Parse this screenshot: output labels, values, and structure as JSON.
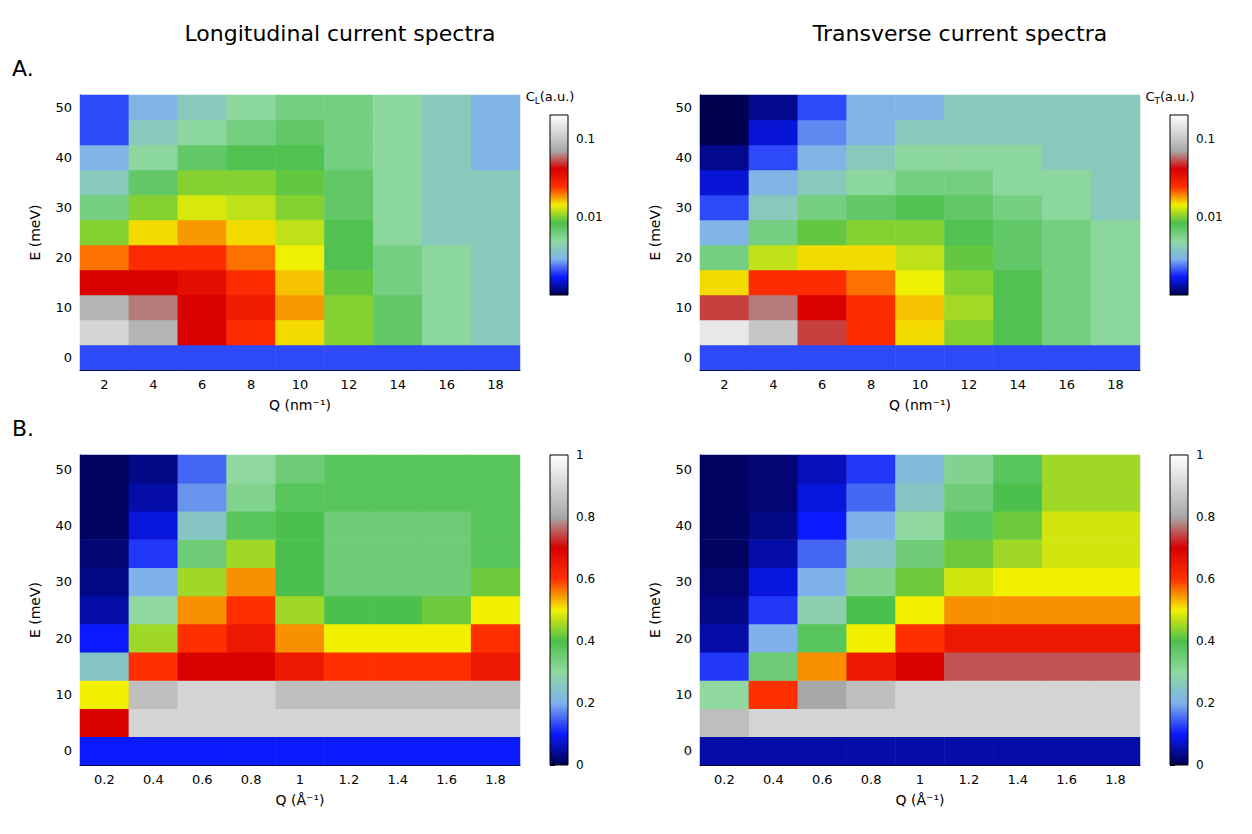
{
  "figure": {
    "column_titles": [
      "Longitudinal current spectra",
      "Transverse current spectra"
    ],
    "panel_labels": [
      "A.",
      "B."
    ]
  },
  "chart_data": [
    {
      "type": "heatmap",
      "x_label": "Q (nm⁻¹)",
      "y_label": "E (meV)",
      "x": [
        2,
        4,
        6,
        8,
        10,
        12,
        14,
        16,
        18
      ],
      "y": [
        0,
        5,
        10,
        15,
        20,
        25,
        30,
        35,
        40,
        45,
        50
      ],
      "xticks": [
        2,
        4,
        6,
        8,
        10,
        12,
        14,
        16,
        18
      ],
      "yticks": [
        0,
        10,
        20,
        30,
        40,
        50
      ],
      "cells": [
        [
          0.002,
          0.002,
          0.002,
          0.002,
          0.002,
          0.002,
          0.002,
          0.002,
          0.002
        ],
        [
          0.12,
          0.08,
          0.04,
          0.025,
          0.015,
          0.01,
          0.007,
          0.005,
          0.004
        ],
        [
          0.08,
          0.06,
          0.04,
          0.03,
          0.018,
          0.01,
          0.007,
          0.005,
          0.004
        ],
        [
          0.04,
          0.04,
          0.035,
          0.025,
          0.016,
          0.009,
          0.006,
          0.005,
          0.004
        ],
        [
          0.02,
          0.025,
          0.025,
          0.02,
          0.014,
          0.008,
          0.006,
          0.005,
          0.004
        ],
        [
          0.01,
          0.015,
          0.018,
          0.015,
          0.012,
          0.008,
          0.005,
          0.004,
          0.004
        ],
        [
          0.006,
          0.01,
          0.013,
          0.012,
          0.01,
          0.007,
          0.005,
          0.004,
          0.004
        ],
        [
          0.004,
          0.007,
          0.01,
          0.01,
          0.009,
          0.007,
          0.005,
          0.004,
          0.004
        ],
        [
          0.003,
          0.005,
          0.007,
          0.008,
          0.008,
          0.006,
          0.005,
          0.004,
          0.003
        ],
        [
          0.002,
          0.004,
          0.005,
          0.006,
          0.007,
          0.006,
          0.005,
          0.004,
          0.003
        ],
        [
          0.002,
          0.003,
          0.004,
          0.005,
          0.006,
          0.006,
          0.005,
          0.004,
          0.003
        ]
      ],
      "colorbar": {
        "range": [
          0.001,
          0.2
        ],
        "ticks": [
          0.01,
          0.1
        ],
        "log": true,
        "label": {
          "main": "C",
          "sub": "L",
          "after": "(a.u.)"
        }
      }
    },
    {
      "type": "heatmap",
      "x_label": "Q (nm⁻¹)",
      "y_label": "E (meV)",
      "x": [
        2,
        4,
        6,
        8,
        10,
        12,
        14,
        16,
        18
      ],
      "y": [
        0,
        5,
        10,
        15,
        20,
        25,
        30,
        35,
        40,
        45,
        50
      ],
      "xticks": [
        2,
        4,
        6,
        8,
        10,
        12,
        14,
        16,
        18
      ],
      "yticks": [
        0,
        10,
        20,
        30,
        40,
        50
      ],
      "cells": [
        [
          0.002,
          0.002,
          0.002,
          0.002,
          0.002,
          0.002,
          0.002,
          0.002,
          0.002
        ],
        [
          0.15,
          0.1,
          0.05,
          0.025,
          0.015,
          0.01,
          0.008,
          0.006,
          0.005
        ],
        [
          0.05,
          0.06,
          0.04,
          0.025,
          0.016,
          0.011,
          0.008,
          0.006,
          0.005
        ],
        [
          0.015,
          0.025,
          0.025,
          0.02,
          0.014,
          0.01,
          0.008,
          0.006,
          0.005
        ],
        [
          0.006,
          0.012,
          0.015,
          0.015,
          0.012,
          0.009,
          0.007,
          0.006,
          0.005
        ],
        [
          0.003,
          0.006,
          0.009,
          0.01,
          0.01,
          0.008,
          0.007,
          0.006,
          0.005
        ],
        [
          0.002,
          0.004,
          0.006,
          0.007,
          0.008,
          0.007,
          0.006,
          0.005,
          0.004
        ],
        [
          0.0015,
          0.003,
          0.004,
          0.005,
          0.006,
          0.006,
          0.005,
          0.005,
          0.004
        ],
        [
          0.0012,
          0.002,
          0.003,
          0.004,
          0.005,
          0.005,
          0.005,
          0.004,
          0.004
        ],
        [
          0.001,
          0.0015,
          0.0025,
          0.003,
          0.004,
          0.004,
          0.004,
          0.004,
          0.004
        ],
        [
          0.001,
          0.0012,
          0.002,
          0.003,
          0.003,
          0.004,
          0.004,
          0.004,
          0.004
        ]
      ],
      "colorbar": {
        "range": [
          0.001,
          0.2
        ],
        "ticks": [
          0.01,
          0.1
        ],
        "log": true,
        "label": {
          "main": "C",
          "sub": "T",
          "after": "(a.u.)"
        }
      }
    },
    {
      "type": "heatmap",
      "x_label": "Q (Å⁻¹)",
      "y_label": "E (meV)",
      "x": [
        0.2,
        0.4,
        0.6,
        0.8,
        1,
        1.2,
        1.4,
        1.6,
        1.8
      ],
      "y": [
        0,
        5,
        10,
        15,
        20,
        25,
        30,
        35,
        40,
        45,
        50
      ],
      "xticks": [
        0.2,
        0.4,
        0.6,
        0.8,
        1,
        1.2,
        1.4,
        1.6,
        1.8
      ],
      "yticks": [
        0,
        10,
        20,
        30,
        40,
        50
      ],
      "cells": [
        [
          0.1,
          0.1,
          0.1,
          0.1,
          0.1,
          0.1,
          0.1,
          0.1,
          0.1
        ],
        [
          0.7,
          0.9,
          0.9,
          0.9,
          0.9,
          0.9,
          0.9,
          0.9,
          0.9
        ],
        [
          0.5,
          0.85,
          0.9,
          0.9,
          0.85,
          0.85,
          0.85,
          0.85,
          0.85
        ],
        [
          0.25,
          0.6,
          0.7,
          0.7,
          0.65,
          0.6,
          0.6,
          0.6,
          0.65
        ],
        [
          0.1,
          0.45,
          0.6,
          0.65,
          0.55,
          0.5,
          0.5,
          0.5,
          0.6
        ],
        [
          0.05,
          0.3,
          0.55,
          0.6,
          0.45,
          0.4,
          0.4,
          0.42,
          0.5
        ],
        [
          0.03,
          0.2,
          0.45,
          0.55,
          0.4,
          0.35,
          0.35,
          0.35,
          0.42
        ],
        [
          0.02,
          0.12,
          0.35,
          0.45,
          0.4,
          0.35,
          0.35,
          0.35,
          0.38
        ],
        [
          0.01,
          0.08,
          0.25,
          0.38,
          0.4,
          0.35,
          0.35,
          0.35,
          0.38
        ],
        [
          0.01,
          0.05,
          0.18,
          0.32,
          0.38,
          0.38,
          0.38,
          0.38,
          0.38
        ],
        [
          0.01,
          0.03,
          0.15,
          0.3,
          0.35,
          0.38,
          0.38,
          0.38,
          0.38
        ]
      ],
      "colorbar": {
        "range": [
          0,
          1
        ],
        "ticks": [
          0,
          0.2,
          0.4,
          0.6,
          0.8,
          1
        ]
      }
    },
    {
      "type": "heatmap",
      "x_label": "Q (Å⁻¹)",
      "y_label": "E (meV)",
      "x": [
        0.2,
        0.4,
        0.6,
        0.8,
        1,
        1.2,
        1.4,
        1.6,
        1.8
      ],
      "y": [
        0,
        5,
        10,
        15,
        20,
        25,
        30,
        35,
        40,
        45,
        50
      ],
      "xticks": [
        0.2,
        0.4,
        0.6,
        0.8,
        1,
        1.2,
        1.4,
        1.6,
        1.8
      ],
      "yticks": [
        0,
        10,
        20,
        30,
        40,
        50
      ],
      "cells": [
        [
          0.05,
          0.05,
          0.05,
          0.05,
          0.05,
          0.05,
          0.05,
          0.05,
          0.05
        ],
        [
          0.85,
          0.9,
          0.9,
          0.9,
          0.9,
          0.9,
          0.9,
          0.9,
          0.9
        ],
        [
          0.3,
          0.6,
          0.8,
          0.85,
          0.9,
          0.9,
          0.9,
          0.9,
          0.9
        ],
        [
          0.12,
          0.35,
          0.55,
          0.65,
          0.7,
          0.75,
          0.75,
          0.75,
          0.75
        ],
        [
          0.05,
          0.2,
          0.38,
          0.5,
          0.6,
          0.65,
          0.65,
          0.65,
          0.65
        ],
        [
          0.03,
          0.12,
          0.28,
          0.4,
          0.5,
          0.55,
          0.55,
          0.55,
          0.55
        ],
        [
          0.02,
          0.08,
          0.2,
          0.32,
          0.42,
          0.48,
          0.5,
          0.5,
          0.5
        ],
        [
          0.01,
          0.05,
          0.15,
          0.25,
          0.35,
          0.42,
          0.45,
          0.48,
          0.48
        ],
        [
          0.01,
          0.03,
          0.1,
          0.2,
          0.3,
          0.38,
          0.42,
          0.48,
          0.48
        ],
        [
          0.01,
          0.02,
          0.08,
          0.15,
          0.25,
          0.35,
          0.4,
          0.45,
          0.45
        ],
        [
          0.01,
          0.02,
          0.06,
          0.12,
          0.22,
          0.32,
          0.38,
          0.45,
          0.45
        ]
      ],
      "colorbar": {
        "range": [
          0,
          1
        ],
        "ticks": [
          0,
          0.2,
          0.4,
          0.6,
          0.8,
          1
        ]
      }
    }
  ]
}
